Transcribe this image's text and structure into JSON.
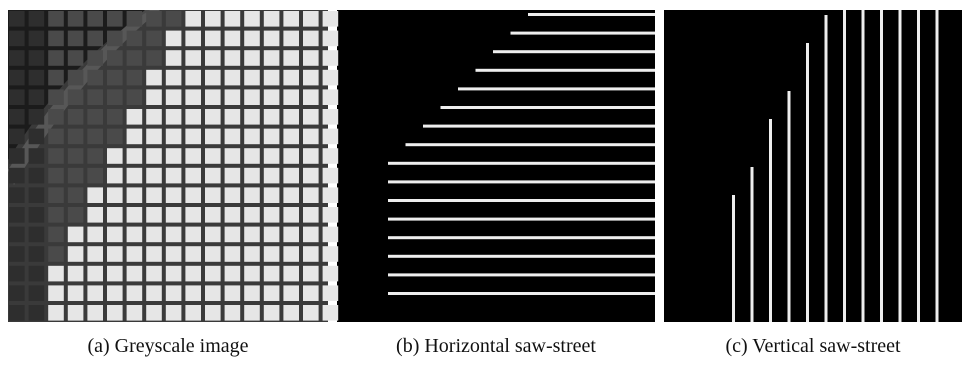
{
  "captions": [
    "(a) Greyscale image",
    "(b) Horizontal saw-street",
    "(c) Vertical saw-street"
  ]
}
